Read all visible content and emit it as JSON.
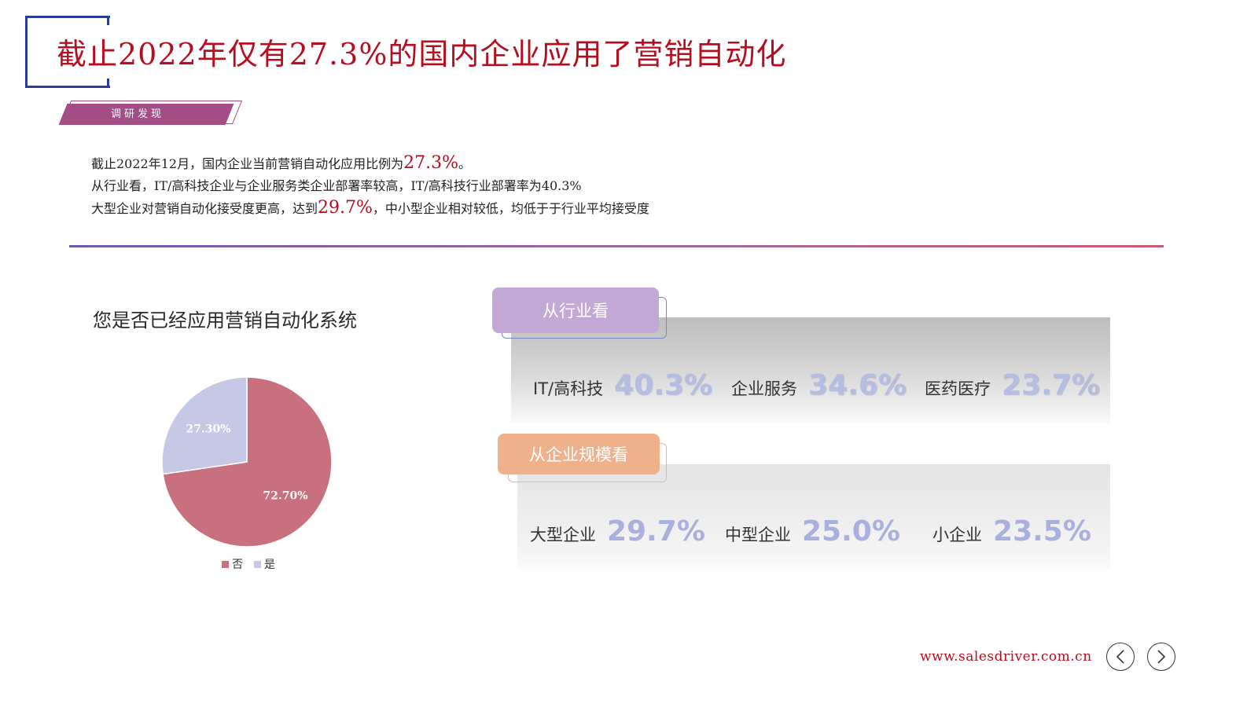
{
  "header": {
    "title": "截止2022年仅有27.3%的国内企业应用了营销自动化",
    "tag": "调研发现"
  },
  "summary": {
    "line1_prefix": "截止2022年12月，国内企业当前营销自动化应用比例为",
    "line1_highlight": "27.3%",
    "line1_suffix": "。",
    "line2": "从行业看，IT/高科技企业与企业服务类企业部署率较高，IT/高科技行业部署率为40.3%",
    "line3_prefix": "大型企业对营销自动化接受度更高，达到",
    "line3_highlight": "29.7%",
    "line3_suffix": "，中小型企业相对较低，均低于于行业平均接受度"
  },
  "chart_data": {
    "type": "pie",
    "title": "您是否已经应用营销自动化系统",
    "slices": [
      {
        "label": "否",
        "value": 72.7,
        "display": "72.70%",
        "color": "#c9707f"
      },
      {
        "label": "是",
        "value": 27.3,
        "display": "27.30%",
        "color": "#c6c8e6"
      }
    ],
    "legend": "bottom"
  },
  "industry": {
    "tab": "从行业看",
    "items": [
      {
        "label": "IT/高科技",
        "value": "40.3%"
      },
      {
        "label": "企业服务",
        "value": "34.6%"
      },
      {
        "label": "医药医疗",
        "value": "23.7%"
      }
    ]
  },
  "company_size": {
    "tab": "从企业规模看",
    "items": [
      {
        "label": "大型企业",
        "value": "29.7%"
      },
      {
        "label": "中型企业",
        "value": "25.0%"
      },
      {
        "label": "小企业",
        "value": "23.5%"
      }
    ]
  },
  "footer": {
    "url": "www.salesdriver.com.cn",
    "prev_icon": "chevron-left-icon",
    "next_icon": "chevron-right-icon"
  }
}
